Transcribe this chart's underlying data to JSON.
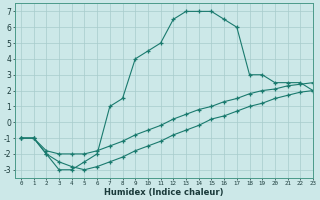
{
  "xlabel": "Humidex (Indice chaleur)",
  "bg_color": "#cce8e8",
  "line_color": "#1a7a6e",
  "xlim": [
    -0.5,
    23
  ],
  "ylim": [
    -3.5,
    7.5
  ],
  "xticks": [
    0,
    1,
    2,
    3,
    4,
    5,
    6,
    7,
    8,
    9,
    10,
    11,
    12,
    13,
    14,
    15,
    16,
    17,
    18,
    19,
    20,
    21,
    22,
    23
  ],
  "yticks": [
    -3,
    -2,
    -1,
    0,
    1,
    2,
    3,
    4,
    5,
    6,
    7
  ],
  "line1_x": [
    0,
    1,
    2,
    3,
    4,
    5,
    6,
    7,
    8,
    9,
    10,
    11,
    12,
    13,
    14,
    15,
    16,
    17,
    18,
    19,
    20,
    21,
    22,
    23
  ],
  "line1_y": [
    -1,
    -1,
    -2,
    -3,
    -3,
    -2.5,
    -2,
    1,
    1.5,
    4,
    4.5,
    5,
    6.5,
    7,
    7,
    7,
    6.5,
    6,
    3,
    3,
    2.5,
    2.5,
    2.5,
    2
  ],
  "line2_x": [
    0,
    1,
    2,
    3,
    4,
    5,
    6,
    7,
    8,
    9,
    10,
    11,
    12,
    13,
    14,
    15,
    16,
    17,
    18,
    19,
    20,
    21,
    22,
    23
  ],
  "line2_y": [
    -1,
    -1,
    -1.8,
    -2,
    -2,
    -2,
    -1.8,
    -1.5,
    -1.2,
    -0.8,
    -0.5,
    -0.2,
    0.2,
    0.5,
    0.8,
    1.0,
    1.3,
    1.5,
    1.8,
    2.0,
    2.1,
    2.3,
    2.4,
    2.5
  ],
  "line3_x": [
    0,
    1,
    2,
    3,
    4,
    5,
    6,
    7,
    8,
    9,
    10,
    11,
    12,
    13,
    14,
    15,
    16,
    17,
    18,
    19,
    20,
    21,
    22,
    23
  ],
  "line3_y": [
    -1,
    -1,
    -2,
    -2.5,
    -2.8,
    -3,
    -2.8,
    -2.5,
    -2.2,
    -1.8,
    -1.5,
    -1.2,
    -0.8,
    -0.5,
    -0.2,
    0.2,
    0.4,
    0.7,
    1.0,
    1.2,
    1.5,
    1.7,
    1.9,
    2.0
  ]
}
